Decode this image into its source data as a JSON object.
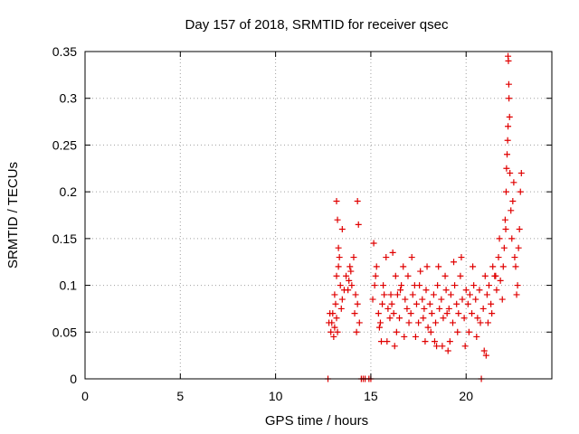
{
  "chart_data": {
    "type": "scatter",
    "title": "Day 157 of 2018, SRMTID for receiver qsec",
    "xlabel": "GPS time / hours",
    "ylabel": "SRMTID / TECUs",
    "xlim": [
      0,
      24.5
    ],
    "ylim": [
      0,
      0.35
    ],
    "xticks": [
      0,
      5,
      10,
      15,
      20
    ],
    "xtick_labels": [
      "0",
      "5",
      "10",
      "15",
      "20"
    ],
    "yticks": [
      0,
      0.05,
      0.1,
      0.15,
      0.2,
      0.25,
      0.3,
      0.35
    ],
    "ytick_labels": [
      "0",
      "0.05",
      "0.1",
      "0.15",
      "0.2",
      "0.25",
      "0.3",
      "0.35"
    ],
    "grid": true,
    "marker": "+",
    "color": "#e00000",
    "series": [
      {
        "name": "SRMTID",
        "x": [
          12.75,
          14.5,
          14.6,
          14.7,
          14.9,
          15.0,
          20.8,
          12.8,
          12.9,
          13.0,
          13.1,
          13.2,
          13.05,
          13.15,
          13.25,
          12.85,
          12.95,
          13.1,
          13.2,
          13.3,
          13.4,
          13.5,
          13.6,
          13.35,
          13.45,
          13.2,
          13.25,
          13.3,
          13.5,
          14.3,
          14.35,
          13.7,
          13.8,
          13.9,
          14.0,
          14.1,
          14.2,
          14.3,
          14.4,
          13.85,
          13.95,
          14.15,
          14.25,
          15.1,
          15.2,
          15.3,
          15.4,
          15.5,
          15.6,
          15.7,
          15.8,
          15.9,
          16.0,
          15.15,
          15.25,
          15.45,
          15.65,
          15.85,
          16.05,
          16.1,
          16.2,
          16.3,
          16.4,
          16.5,
          16.6,
          16.7,
          16.8,
          16.9,
          17.0,
          16.15,
          16.35,
          16.55,
          16.75,
          16.95,
          17.1,
          17.2,
          17.3,
          17.4,
          17.5,
          17.6,
          17.7,
          17.8,
          17.9,
          18.0,
          17.15,
          17.35,
          17.55,
          17.75,
          17.95,
          18.1,
          18.2,
          18.3,
          18.4,
          18.5,
          18.6,
          18.7,
          18.8,
          18.9,
          19.0,
          18.15,
          18.35,
          18.55,
          18.75,
          18.95,
          19.1,
          19.2,
          19.3,
          19.4,
          19.5,
          19.6,
          19.7,
          19.8,
          19.9,
          20.0,
          19.15,
          19.35,
          19.55,
          19.75,
          19.95,
          20.1,
          20.2,
          20.3,
          20.4,
          20.5,
          20.6,
          20.7,
          20.9,
          21.0,
          20.15,
          20.35,
          20.55,
          20.75,
          21.1,
          21.2,
          21.3,
          21.4,
          21.5,
          21.6,
          21.7,
          21.8,
          21.9,
          22.0,
          21.15,
          21.35,
          21.55,
          21.75,
          21.95,
          22.05,
          22.1,
          22.15,
          22.2,
          22.25,
          22.3,
          22.35,
          22.4,
          22.45,
          22.5,
          22.2,
          22.22,
          22.24,
          22.18,
          22.28,
          22.08,
          22.12,
          22.55,
          22.6,
          22.7,
          22.8,
          22.85,
          22.9,
          22.75,
          22.65,
          20.95,
          21.05,
          19.05,
          18.45,
          17.85,
          16.25,
          15.55
        ],
        "y": [
          0.0,
          0.0,
          0.0,
          0.0,
          0.0,
          0.0,
          0.0,
          0.06,
          0.05,
          0.07,
          0.055,
          0.065,
          0.045,
          0.08,
          0.05,
          0.07,
          0.06,
          0.09,
          0.11,
          0.12,
          0.1,
          0.085,
          0.095,
          0.13,
          0.075,
          0.19,
          0.17,
          0.14,
          0.16,
          0.19,
          0.165,
          0.11,
          0.095,
          0.12,
          0.1,
          0.13,
          0.09,
          0.08,
          0.06,
          0.105,
          0.115,
          0.07,
          0.05,
          0.085,
          0.1,
          0.12,
          0.07,
          0.06,
          0.08,
          0.09,
          0.13,
          0.075,
          0.065,
          0.145,
          0.11,
          0.055,
          0.1,
          0.04,
          0.09,
          0.08,
          0.07,
          0.11,
          0.09,
          0.065,
          0.1,
          0.12,
          0.085,
          0.075,
          0.06,
          0.135,
          0.05,
          0.095,
          0.045,
          0.11,
          0.07,
          0.09,
          0.1,
          0.08,
          0.06,
          0.115,
          0.085,
          0.075,
          0.095,
          0.055,
          0.13,
          0.045,
          0.1,
          0.065,
          0.12,
          0.08,
          0.07,
          0.09,
          0.06,
          0.1,
          0.075,
          0.085,
          0.065,
          0.11,
          0.07,
          0.05,
          0.04,
          0.12,
          0.035,
          0.095,
          0.075,
          0.09,
          0.06,
          0.1,
          0.08,
          0.07,
          0.11,
          0.085,
          0.065,
          0.095,
          0.04,
          0.125,
          0.05,
          0.13,
          0.035,
          0.08,
          0.09,
          0.07,
          0.1,
          0.085,
          0.065,
          0.095,
          0.075,
          0.11,
          0.05,
          0.12,
          0.045,
          0.06,
          0.09,
          0.1,
          0.08,
          0.12,
          0.11,
          0.095,
          0.13,
          0.105,
          0.085,
          0.14,
          0.06,
          0.07,
          0.11,
          0.15,
          0.12,
          0.17,
          0.2,
          0.24,
          0.27,
          0.3,
          0.22,
          0.18,
          0.15,
          0.19,
          0.21,
          0.345,
          0.34,
          0.315,
          0.255,
          0.28,
          0.16,
          0.225,
          0.13,
          0.12,
          0.1,
          0.16,
          0.2,
          0.22,
          0.14,
          0.09,
          0.03,
          0.025,
          0.03,
          0.035,
          0.04,
          0.035,
          0.04
        ]
      }
    ]
  }
}
